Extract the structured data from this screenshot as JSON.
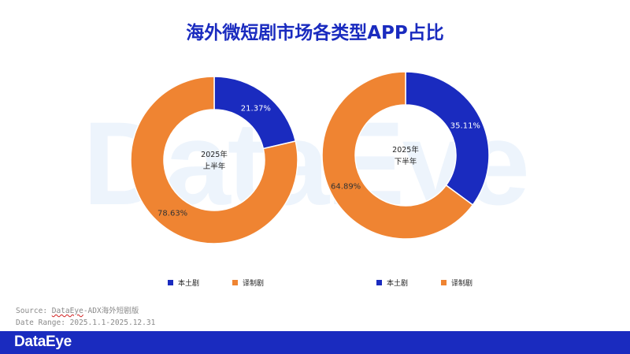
{
  "title": "海外微短剧市场各类型APP占比",
  "watermark": "DataEye",
  "colors": {
    "local": "#1a2bbf",
    "translated": "#ef8432",
    "footer": "#1a2bbf"
  },
  "chart_data": [
    {
      "type": "pie",
      "center_label": [
        "2025年",
        "上半年"
      ],
      "categories": [
        "本土剧",
        "译制剧"
      ],
      "values": [
        21.37,
        78.63
      ],
      "data_labels": [
        "21.37%",
        "78.63%"
      ],
      "legend": [
        "本土剧",
        "译制剧"
      ],
      "legend_placement": "bottom"
    },
    {
      "type": "pie",
      "center_label": [
        "2025年",
        "下半年"
      ],
      "categories": [
        "本土剧",
        "译制剧"
      ],
      "values": [
        35.11,
        64.89
      ],
      "data_labels": [
        "35.11%",
        "64.89%"
      ],
      "legend": [
        "本土剧",
        "译制剧"
      ],
      "legend_placement": "bottom"
    }
  ],
  "source": {
    "prefix": "Source: ",
    "brand": "DataEye",
    "suffix": "-ADX海外短剧版",
    "date_range": "Date Range: 2025.1.1-2025.12.31"
  },
  "footer": {
    "logo": "DataEye"
  }
}
